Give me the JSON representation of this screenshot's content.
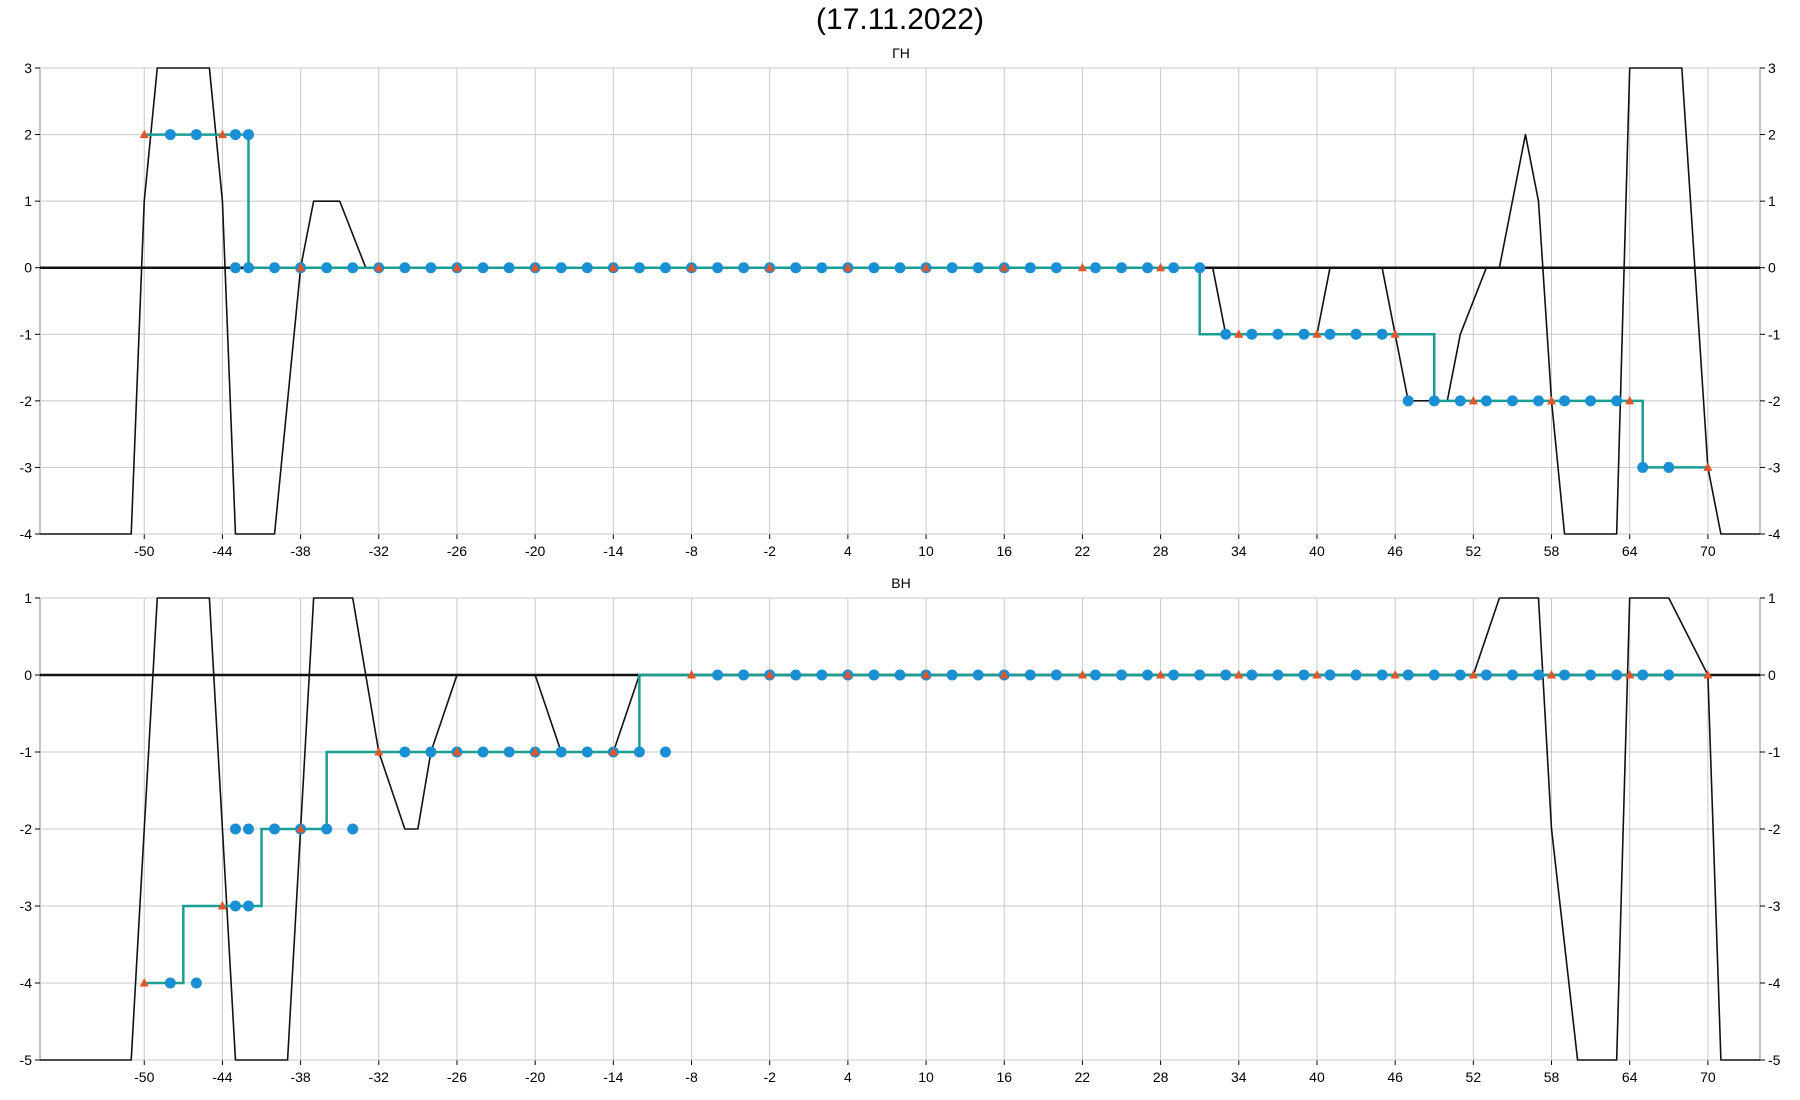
{
  "title": "(17.11.2022)",
  "colors": {
    "step": "#1a9e92",
    "circle": "#1a8fd4",
    "triangle": "#e0562a",
    "black": "#111111",
    "grid": "#c8c8c8"
  },
  "chart_data": [
    {
      "type": "line",
      "title": "ГН",
      "xlim": [
        -58,
        74
      ],
      "ylim": [
        -4,
        3
      ],
      "x_ticks": [
        -50,
        -44,
        -38,
        -32,
        -26,
        -20,
        -14,
        -8,
        -2,
        4,
        10,
        16,
        22,
        28,
        34,
        40,
        46,
        52,
        58,
        64,
        70
      ],
      "y_ticks": [
        3,
        2,
        1,
        0,
        -1,
        -2,
        -3,
        -4
      ],
      "grid": true,
      "series": [
        {
          "kind": "black-line",
          "x": [
            -58,
            -51,
            -50,
            -49,
            -45,
            -44,
            -43,
            -40,
            -38,
            -37,
            -35,
            -33,
            30,
            32,
            33,
            40,
            41,
            45,
            46,
            47,
            50,
            51,
            53,
            54,
            56,
            57,
            58,
            59,
            63,
            64,
            68,
            70,
            71,
            74
          ],
          "y": [
            -4,
            -4,
            1,
            3,
            3,
            1,
            -4,
            -4,
            0,
            1,
            1,
            0,
            0,
            0,
            -1,
            -1,
            0,
            0,
            -1,
            -2,
            -2,
            -1,
            0,
            0,
            2,
            1,
            -2,
            -4,
            -4,
            3,
            3,
            -3,
            -4,
            -4
          ]
        },
        {
          "kind": "step-line",
          "x": [
            -50,
            -42,
            -42,
            31,
            31,
            49,
            49,
            65,
            65,
            70
          ],
          "y": [
            2,
            2,
            0,
            0,
            -1,
            -1,
            -2,
            -2,
            -3,
            -3
          ]
        },
        {
          "kind": "circles",
          "x": [
            -48,
            -46,
            -43,
            -42,
            -43,
            -42,
            -40,
            -38,
            -36,
            -34,
            -32,
            -30,
            -28,
            -26,
            -24,
            -22,
            -20,
            -18,
            -16,
            -14,
            -12,
            -10,
            -8,
            -6,
            -4,
            -2,
            0,
            2,
            4,
            6,
            8,
            10,
            12,
            14,
            16,
            18,
            20,
            23,
            25,
            27,
            29,
            31,
            33,
            35,
            37,
            39,
            41,
            43,
            45,
            47,
            49,
            51,
            53,
            55,
            57,
            59,
            61,
            63,
            65,
            67
          ],
          "y": [
            2,
            2,
            2,
            2,
            0,
            0,
            0,
            0,
            0,
            0,
            0,
            0,
            0,
            0,
            0,
            0,
            0,
            0,
            0,
            0,
            0,
            0,
            0,
            0,
            0,
            0,
            0,
            0,
            0,
            0,
            0,
            0,
            0,
            0,
            0,
            0,
            0,
            0,
            0,
            0,
            0,
            0,
            -1,
            -1,
            -1,
            -1,
            -1,
            -1,
            -1,
            -2,
            -2,
            -2,
            -2,
            -2,
            -2,
            -2,
            -2,
            -2,
            -3,
            -3
          ]
        },
        {
          "kind": "triangles",
          "x": [
            -50,
            -44,
            -38,
            -32,
            -26,
            -20,
            -14,
            -8,
            -2,
            4,
            10,
            16,
            22,
            28,
            34,
            40,
            46,
            52,
            58,
            64,
            70
          ],
          "y": [
            2,
            2,
            0,
            0,
            0,
            0,
            0,
            0,
            0,
            0,
            0,
            0,
            0,
            0,
            -1,
            -1,
            -1,
            -2,
            -2,
            -2,
            -3
          ]
        }
      ]
    },
    {
      "type": "line",
      "title": "ВН",
      "xlim": [
        -58,
        74
      ],
      "ylim": [
        -5,
        1
      ],
      "x_ticks": [
        -50,
        -44,
        -38,
        -32,
        -26,
        -20,
        -14,
        -8,
        -2,
        4,
        10,
        16,
        22,
        28,
        34,
        40,
        46,
        52,
        58,
        64,
        70
      ],
      "y_ticks": [
        1,
        0,
        -1,
        -2,
        -3,
        -4,
        -5
      ],
      "grid": true,
      "series": [
        {
          "kind": "black-line",
          "x": [
            -58,
            -51,
            -49,
            -45,
            -43,
            -39,
            -37,
            -34,
            -32,
            -30,
            -29,
            -28,
            -26,
            -20,
            -18,
            -14,
            -12,
            52,
            54,
            57,
            58,
            60,
            63,
            64,
            67,
            70,
            71,
            74
          ],
          "y": [
            -5,
            -5,
            1,
            1,
            -5,
            -5,
            1,
            1,
            -1,
            -2,
            -2,
            -1,
            0,
            0,
            -1,
            -1,
            0,
            0,
            1,
            1,
            -2,
            -5,
            -5,
            1,
            1,
            0,
            -5,
            -5
          ]
        },
        {
          "kind": "step-line",
          "x": [
            -50,
            -47,
            -47,
            -41,
            -41,
            -36,
            -36,
            -12,
            -12,
            70
          ],
          "y": [
            -4,
            -4,
            -3,
            -3,
            -2,
            -2,
            -1,
            -1,
            0,
            0
          ]
        },
        {
          "kind": "circles",
          "x": [
            -48,
            -46,
            -43,
            -42,
            -43,
            -42,
            -40,
            -38,
            -36,
            -34,
            -30,
            -28,
            -26,
            -24,
            -22,
            -20,
            -18,
            -16,
            -14,
            -12,
            -10,
            -6,
            -4,
            -2,
            0,
            2,
            4,
            6,
            8,
            10,
            12,
            14,
            16,
            18,
            20,
            23,
            25,
            27,
            29,
            31,
            33,
            35,
            37,
            39,
            41,
            43,
            45,
            47,
            49,
            51,
            53,
            55,
            57,
            59,
            61,
            63,
            65,
            67
          ],
          "y": [
            -4,
            -4,
            -3,
            -3,
            -2,
            -2,
            -2,
            -2,
            -2,
            -2,
            -1,
            -1,
            -1,
            -1,
            -1,
            -1,
            -1,
            -1,
            -1,
            -1,
            -1,
            0,
            0,
            0,
            0,
            0,
            0,
            0,
            0,
            0,
            0,
            0,
            0,
            0,
            0,
            0,
            0,
            0,
            0,
            0,
            0,
            0,
            0,
            0,
            0,
            0,
            0,
            0,
            0,
            0,
            0,
            0,
            0,
            0,
            0,
            0,
            0,
            0
          ]
        },
        {
          "kind": "triangles",
          "x": [
            -50,
            -44,
            -38,
            -32,
            -26,
            -20,
            -14,
            -8,
            -2,
            4,
            10,
            16,
            22,
            28,
            34,
            40,
            46,
            52,
            58,
            64,
            70
          ],
          "y": [
            -4,
            -3,
            -2,
            -1,
            -1,
            -1,
            -1,
            0,
            0,
            0,
            0,
            0,
            0,
            0,
            0,
            0,
            0,
            0,
            0,
            0,
            0
          ]
        }
      ]
    }
  ]
}
